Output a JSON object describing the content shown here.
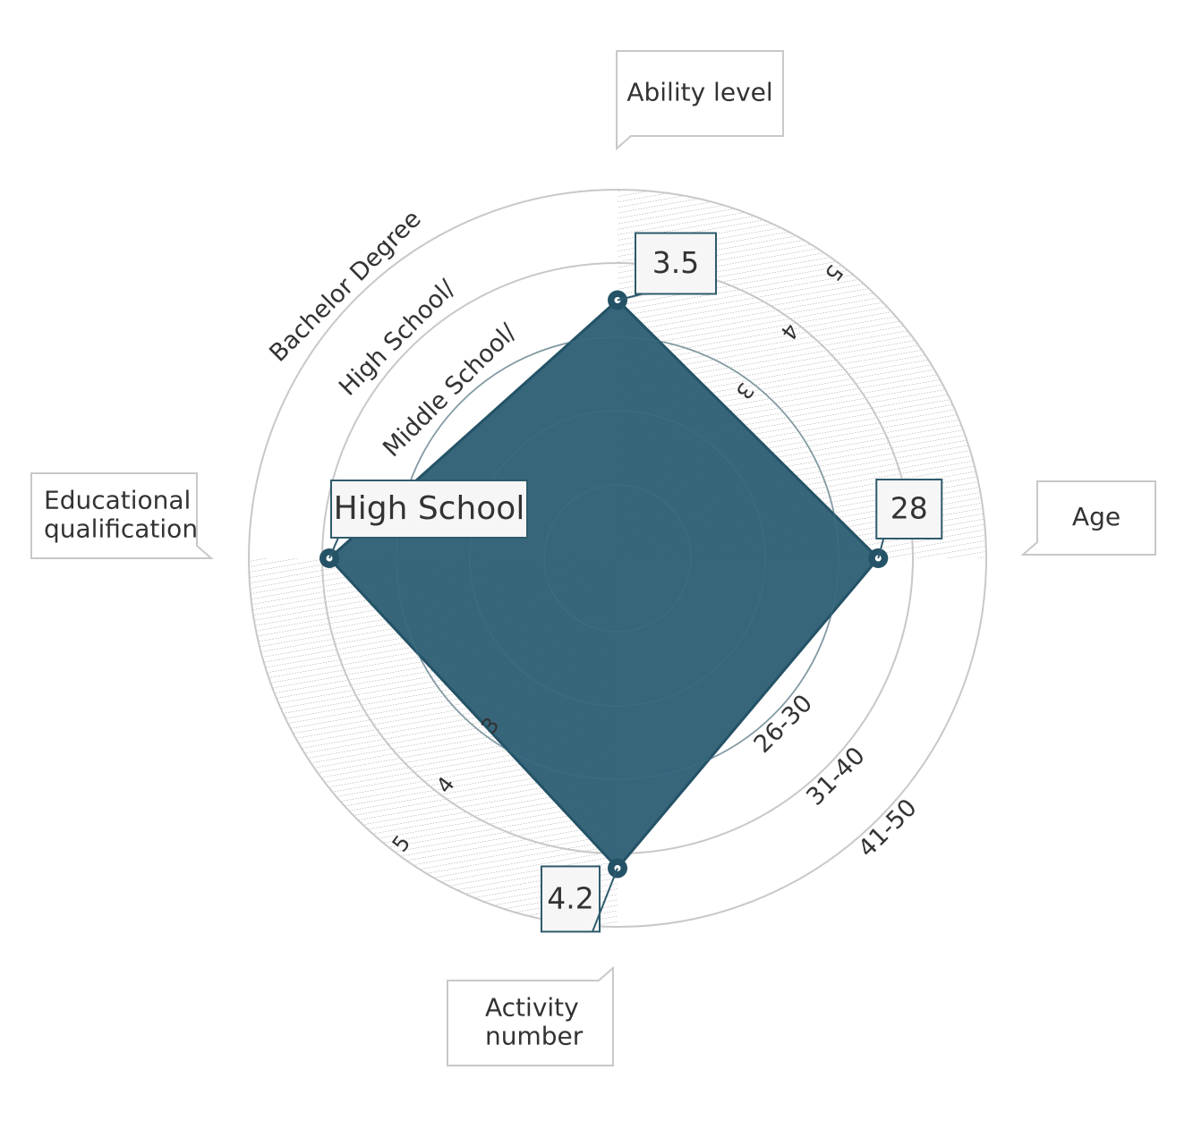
{
  "chart_data": {
    "type": "radar",
    "title": "",
    "axes": [
      {
        "name": "Ability level",
        "direction": "up",
        "tick_labels": [
          "3",
          "4",
          "5"
        ],
        "value": 3.5,
        "value_label": "3.5"
      },
      {
        "name": "Age",
        "direction": "right",
        "tick_labels": [
          "26-30",
          "31-40",
          "41-50"
        ],
        "value": 28,
        "value_label": "28"
      },
      {
        "name": "Activity number",
        "direction": "down",
        "tick_labels": [
          "3",
          "4",
          "5"
        ],
        "value": 4.2,
        "value_label": "4.2"
      },
      {
        "name": "Educational qualification",
        "direction": "left",
        "tick_labels": [
          "Middle School/",
          "High School/",
          "Bachelor Degree"
        ],
        "value": "High School",
        "value_label": "High School"
      }
    ],
    "axis_callouts": {
      "ability": [
        "Ability level"
      ],
      "age": [
        "Age"
      ],
      "activity": [
        "Activity",
        "number"
      ],
      "education": [
        "Educational",
        "qualification"
      ]
    },
    "hatched_quadrants": [
      "top-right",
      "bottom-left"
    ],
    "colors": {
      "fill": "#2f6076",
      "stroke": "#245266",
      "ring": "#c8c8c8",
      "hatch": "#9a9a9a"
    },
    "grid": true
  }
}
